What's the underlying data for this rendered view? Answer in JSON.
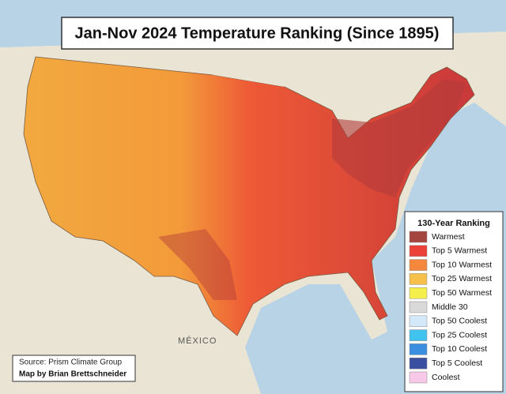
{
  "header": {
    "title": "Jan-Nov 2024 Temperature Ranking (Since 1895)"
  },
  "map": {
    "country_label": "MÉXICO"
  },
  "legend": {
    "title": "130-Year Ranking",
    "items": [
      {
        "label": "Warmest",
        "color": "#a4453e"
      },
      {
        "label": "Top 5 Warmest",
        "color": "#ec4139"
      },
      {
        "label": "Top 10 Warmest",
        "color": "#f5883c"
      },
      {
        "label": "Top 25 Warmest",
        "color": "#f7c04a"
      },
      {
        "label": "Top 50 Warmest",
        "color": "#f5ef4c"
      },
      {
        "label": "Middle 30",
        "color": "#d9d9d9"
      },
      {
        "label": "Top 50 Coolest",
        "color": "#d3e8f8"
      },
      {
        "label": "Top 25 Coolest",
        "color": "#40c4ef"
      },
      {
        "label": "Top 10 Coolest",
        "color": "#3a8fe0"
      },
      {
        "label": "Top 5 Coolest",
        "color": "#3a4fa0"
      },
      {
        "label": "Coolest",
        "color": "#f8c8e8"
      }
    ]
  },
  "footer": {
    "source": "Source: Prism Climate Group",
    "credit": "Map by Brian Brettschneider"
  }
}
